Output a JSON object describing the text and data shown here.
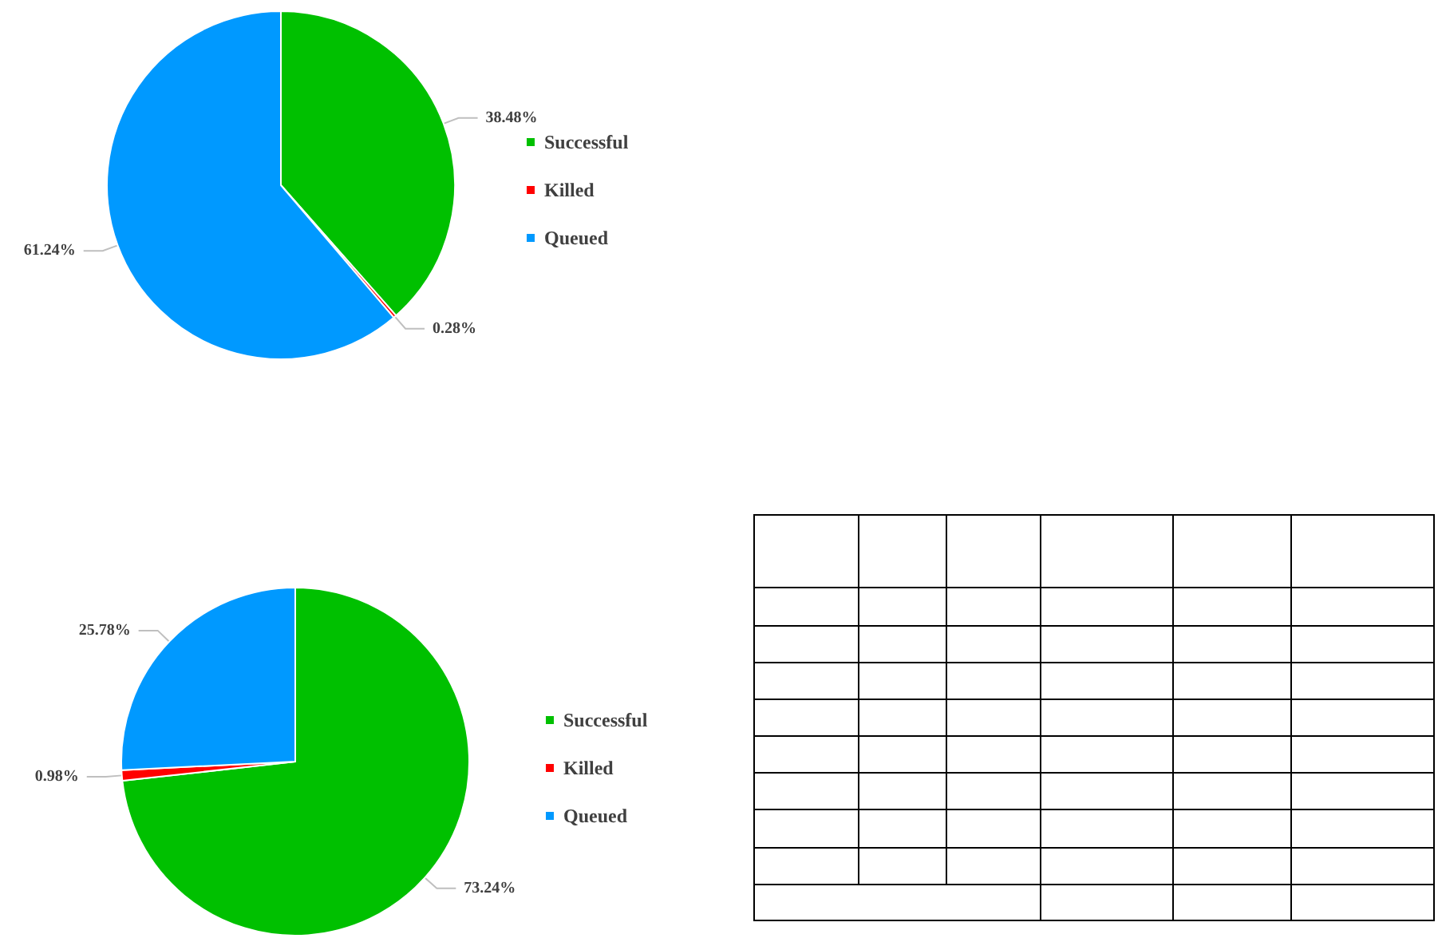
{
  "chart_data": [
    {
      "type": "pie",
      "categories": [
        "Successful",
        "Killed",
        "Queued"
      ],
      "values": [
        38.48,
        0.28,
        61.24
      ],
      "value_labels": [
        "38.48%",
        "0.28%",
        "61.24%"
      ],
      "colors": [
        "#00c000",
        "#ff0000",
        "#0099ff"
      ],
      "legend": "right"
    },
    {
      "type": "pie",
      "categories": [
        "Successful",
        "Killed",
        "Queued"
      ],
      "values": [
        73.24,
        0.98,
        25.78
      ],
      "value_labels": [
        "73.24%",
        "0.98%",
        "25.78%"
      ],
      "colors": [
        "#00c000",
        "#ff0000",
        "#0099ff"
      ],
      "legend": "right"
    }
  ]
}
